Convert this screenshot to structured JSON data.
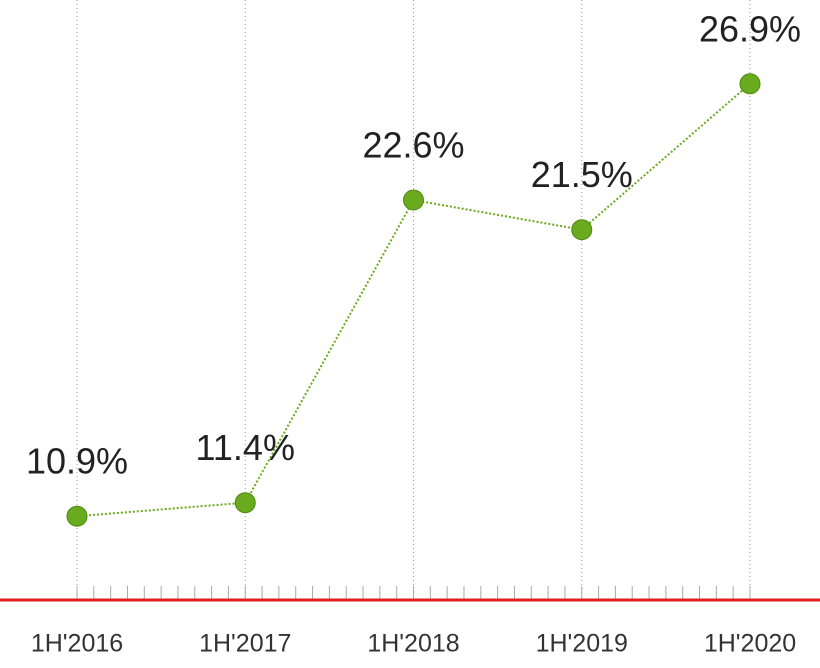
{
  "chart_data": {
    "type": "line",
    "categories": [
      "1H'2016",
      "1H'2017",
      "1H'2018",
      "1H'2019",
      "1H'2020"
    ],
    "series": [
      {
        "color": "#6aaa1e",
        "values": [
          10.9,
          11.4,
          22.6,
          21.5,
          26.9
        ],
        "value_labels": [
          "10.9%",
          "11.4%",
          "22.6%",
          "21.5%",
          "26.9%"
        ]
      }
    ],
    "ylim": [
      7.8,
      30
    ],
    "grid": true,
    "baseline_color": "#e0201f"
  }
}
